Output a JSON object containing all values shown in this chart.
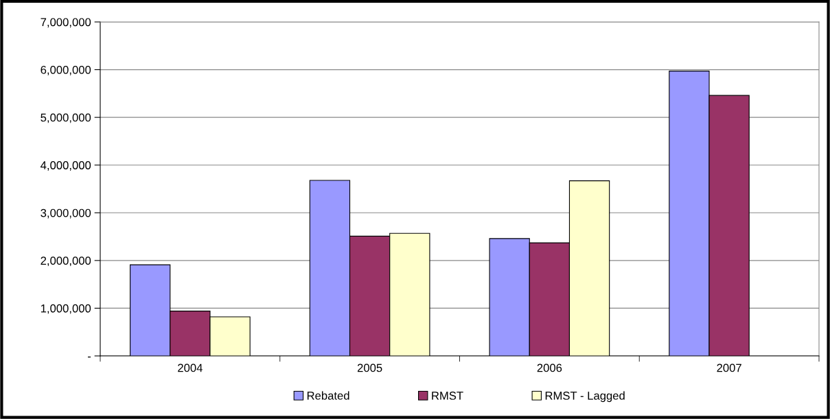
{
  "chart_data": {
    "type": "bar",
    "categories": [
      "2004",
      "2005",
      "2006",
      "2007"
    ],
    "series": [
      {
        "name": "Rebated",
        "color": "#9999ff",
        "values": [
          1910000,
          3680000,
          2460000,
          5970000
        ]
      },
      {
        "name": "RMST",
        "color": "#993366",
        "values": [
          940000,
          2510000,
          2370000,
          5460000
        ]
      },
      {
        "name": "RMST - Lagged",
        "color": "#ffffcc",
        "values": [
          820000,
          2570000,
          3670000,
          null
        ]
      }
    ],
    "ylim": [
      0,
      7000000
    ],
    "yticks": [
      {
        "value": 0,
        "label": "-"
      },
      {
        "value": 1000000,
        "label": "1,000,000"
      },
      {
        "value": 2000000,
        "label": "2,000,000"
      },
      {
        "value": 3000000,
        "label": "3,000,000"
      },
      {
        "value": 4000000,
        "label": "4,000,000"
      },
      {
        "value": 5000000,
        "label": "5,000,000"
      },
      {
        "value": 6000000,
        "label": "6,000,000"
      },
      {
        "value": 7000000,
        "label": "7,000,000"
      }
    ],
    "grid": "y",
    "legend": "bottom"
  }
}
